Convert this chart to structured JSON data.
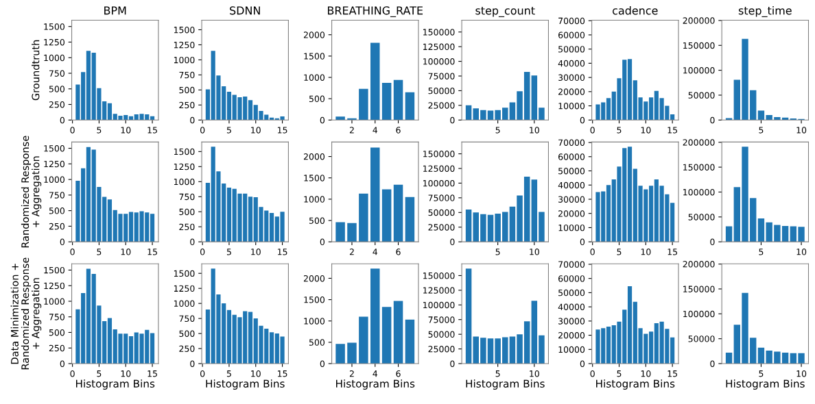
{
  "chart_data": [
    {
      "type": "bar",
      "title": "BPM",
      "ylabel": "Groundtruth",
      "x": [
        1,
        2,
        3,
        4,
        5,
        6,
        7,
        8,
        9,
        10,
        11,
        12,
        13,
        14,
        15
      ],
      "values": [
        570,
        770,
        1110,
        1080,
        510,
        300,
        270,
        100,
        70,
        80,
        60,
        90,
        100,
        90,
        60
      ],
      "color": "#1f77b4",
      "xlim": [
        -0.14,
        16.14
      ],
      "ylim": [
        0,
        1601
      ],
      "xticks": [
        0,
        5,
        10,
        15
      ],
      "yticks": [
        0,
        250,
        500,
        750,
        1000,
        1250,
        1500
      ]
    },
    {
      "type": "bar",
      "title": "SDNN",
      "x": [
        1,
        2,
        3,
        4,
        5,
        6,
        7,
        8,
        9,
        10,
        11,
        12,
        13,
        14,
        15
      ],
      "values": [
        510,
        1150,
        740,
        560,
        470,
        420,
        380,
        390,
        330,
        250,
        150,
        90,
        40,
        30,
        60
      ],
      "color": "#1f77b4",
      "xlim": [
        -0.14,
        16.14
      ],
      "ylim": [
        0,
        1659
      ],
      "xticks": [
        0,
        5,
        10,
        15
      ],
      "yticks": [
        0,
        250,
        500,
        750,
        1000,
        1250,
        1500
      ]
    },
    {
      "type": "bar",
      "title": "BREATHING_RATE",
      "x": [
        1,
        2,
        3,
        4,
        5,
        6,
        7
      ],
      "values": [
        80,
        40,
        730,
        1810,
        870,
        940,
        650
      ],
      "color": "#1f77b4",
      "xlim": [
        0.26,
        7.74
      ],
      "ylim": [
        0,
        2341
      ],
      "xticks": [
        2,
        4,
        6
      ],
      "yticks": [
        0,
        500,
        1000,
        1500,
        2000
      ]
    },
    {
      "type": "bar",
      "title": "step_count",
      "x": [
        1,
        2,
        3,
        4,
        5,
        6,
        7,
        8,
        9,
        10,
        11
      ],
      "values": [
        25000,
        20000,
        17000,
        16000,
        17000,
        21000,
        30000,
        49000,
        82000,
        76000,
        21000
      ],
      "color": "#1f77b4",
      "xlim": [
        0.06,
        11.94
      ],
      "ylim": [
        0,
        170100
      ],
      "xticks": [
        5,
        10
      ],
      "yticks": [
        0,
        25000,
        50000,
        75000,
        100000,
        125000,
        150000
      ]
    },
    {
      "type": "bar",
      "title": "cadence",
      "x": [
        1,
        2,
        3,
        4,
        5,
        6,
        7,
        8,
        9,
        10,
        11,
        12,
        13,
        14,
        15
      ],
      "values": [
        11000,
        12500,
        15500,
        20000,
        29500,
        42500,
        43000,
        28000,
        16000,
        13000,
        16000,
        20500,
        15500,
        10000,
        4000
      ],
      "color": "#1f77b4",
      "xlim": [
        -0.14,
        16.14
      ],
      "ylim": [
        0,
        70350
      ],
      "xticks": [
        0,
        5,
        10,
        15
      ],
      "yticks": [
        0,
        10000,
        20000,
        30000,
        40000,
        50000,
        60000,
        70000
      ]
    },
    {
      "type": "bar",
      "title": "step_time",
      "x": [
        1,
        2,
        3,
        4,
        5,
        6,
        7,
        8,
        9,
        10
      ],
      "values": [
        4000,
        81000,
        163000,
        60000,
        19000,
        10000,
        6000,
        5000,
        3000,
        2000
      ],
      "color": "#1f77b4",
      "xlim": [
        0.11,
        10.89
      ],
      "ylim": [
        0,
        200550
      ],
      "xticks": [
        5,
        10
      ],
      "yticks": [
        0,
        50000,
        100000,
        150000,
        200000
      ]
    },
    {
      "type": "bar",
      "ylabel": "Randomized Response\n+ Aggregation",
      "x": [
        1,
        2,
        3,
        4,
        5,
        6,
        7,
        8,
        9,
        10,
        11,
        12,
        13,
        14,
        15
      ],
      "values": [
        980,
        1180,
        1520,
        1480,
        880,
        720,
        680,
        510,
        450,
        450,
        480,
        470,
        490,
        470,
        450
      ],
      "color": "#1f77b4",
      "xlim": [
        -0.14,
        16.14
      ],
      "ylim": [
        0,
        1601
      ],
      "xticks": [
        0,
        5,
        10,
        15
      ],
      "yticks": [
        0,
        250,
        500,
        750,
        1000,
        1250,
        1500
      ]
    },
    {
      "type": "bar",
      "x": [
        1,
        2,
        3,
        4,
        5,
        6,
        7,
        8,
        9,
        10,
        11,
        12,
        13,
        14,
        15
      ],
      "values": [
        980,
        1580,
        1170,
        970,
        900,
        880,
        800,
        800,
        750,
        740,
        580,
        520,
        480,
        420,
        500
      ],
      "color": "#1f77b4",
      "xlim": [
        -0.14,
        16.14
      ],
      "ylim": [
        0,
        1659
      ],
      "xticks": [
        0,
        5,
        10,
        15
      ],
      "yticks": [
        0,
        250,
        500,
        750,
        1000,
        1250,
        1500
      ]
    },
    {
      "type": "bar",
      "x": [
        1,
        2,
        3,
        4,
        5,
        6,
        7
      ],
      "values": [
        460,
        440,
        1130,
        2210,
        1230,
        1340,
        1050
      ],
      "color": "#1f77b4",
      "xlim": [
        0.26,
        7.74
      ],
      "ylim": [
        0,
        2341
      ],
      "xticks": [
        2,
        4,
        6
      ],
      "yticks": [
        0,
        500,
        1000,
        1500,
        2000
      ]
    },
    {
      "type": "bar",
      "x": [
        1,
        2,
        3,
        4,
        5,
        6,
        7,
        8,
        9,
        10,
        11
      ],
      "values": [
        55000,
        50000,
        47000,
        46000,
        48000,
        51000,
        60000,
        79000,
        111000,
        106000,
        51000
      ],
      "color": "#1f77b4",
      "xlim": [
        0.06,
        11.94
      ],
      "ylim": [
        0,
        170100
      ],
      "xticks": [
        5,
        10
      ],
      "yticks": [
        0,
        25000,
        50000,
        75000,
        100000,
        125000,
        150000
      ]
    },
    {
      "type": "bar",
      "x": [
        1,
        2,
        3,
        4,
        5,
        6,
        7,
        8,
        9,
        10,
        11,
        12,
        13,
        14,
        15
      ],
      "values": [
        35000,
        35500,
        40000,
        44000,
        53000,
        66000,
        67000,
        51500,
        39500,
        37000,
        39500,
        44000,
        39500,
        33500,
        27500
      ],
      "color": "#1f77b4",
      "xlim": [
        -0.14,
        16.14
      ],
      "ylim": [
        0,
        70350
      ],
      "xticks": [
        0,
        5,
        10,
        15
      ],
      "yticks": [
        0,
        10000,
        20000,
        30000,
        40000,
        50000,
        60000,
        70000
      ]
    },
    {
      "type": "bar",
      "x": [
        1,
        2,
        3,
        4,
        5,
        6,
        7,
        8,
        9,
        10
      ],
      "values": [
        31000,
        110000,
        191000,
        88000,
        47000,
        39000,
        34000,
        32000,
        31000,
        30000
      ],
      "color": "#1f77b4",
      "xlim": [
        0.11,
        10.89
      ],
      "ylim": [
        0,
        200550
      ],
      "xticks": [
        5,
        10
      ],
      "yticks": [
        0,
        50000,
        100000,
        150000,
        200000
      ]
    },
    {
      "type": "bar",
      "ylabel": "Data Minimization +\nRandomized Response\n+ Aggregation",
      "xlabel": "Histogram Bins",
      "x": [
        1,
        2,
        3,
        4,
        5,
        6,
        7,
        8,
        9,
        10,
        11,
        12,
        13,
        14,
        15
      ],
      "values": [
        870,
        1130,
        1520,
        1440,
        930,
        680,
        730,
        550,
        480,
        480,
        440,
        500,
        480,
        540,
        490
      ],
      "color": "#1f77b4",
      "xlim": [
        -0.14,
        16.14
      ],
      "ylim": [
        0,
        1601
      ],
      "xticks": [
        0,
        5,
        10,
        15
      ],
      "yticks": [
        0,
        250,
        500,
        750,
        1000,
        1250,
        1500
      ]
    },
    {
      "type": "bar",
      "xlabel": "Histogram Bins",
      "x": [
        1,
        2,
        3,
        4,
        5,
        6,
        7,
        8,
        9,
        10,
        11,
        12,
        13,
        14,
        15
      ],
      "values": [
        900,
        1580,
        1150,
        1000,
        890,
        810,
        770,
        870,
        860,
        750,
        630,
        580,
        520,
        500,
        450
      ],
      "color": "#1f77b4",
      "xlim": [
        -0.14,
        16.14
      ],
      "ylim": [
        0,
        1659
      ],
      "xticks": [
        0,
        5,
        10,
        15
      ],
      "yticks": [
        0,
        250,
        500,
        750,
        1000,
        1250,
        1500
      ]
    },
    {
      "type": "bar",
      "xlabel": "Histogram Bins",
      "x": [
        1,
        2,
        3,
        4,
        5,
        6,
        7
      ],
      "values": [
        460,
        490,
        1100,
        2230,
        1330,
        1470,
        1030
      ],
      "color": "#1f77b4",
      "xlim": [
        0.26,
        7.74
      ],
      "ylim": [
        0,
        2341
      ],
      "xticks": [
        2,
        4,
        6
      ],
      "yticks": [
        0,
        500,
        1000,
        1500,
        2000
      ]
    },
    {
      "type": "bar",
      "xlabel": "Histogram Bins",
      "x": [
        1,
        2,
        3,
        4,
        5,
        6,
        7,
        8,
        9,
        10,
        11
      ],
      "values": [
        162000,
        46000,
        44000,
        43000,
        43000,
        45000,
        46000,
        50000,
        72000,
        107000,
        48000
      ],
      "color": "#1f77b4",
      "xlim": [
        0.06,
        11.94
      ],
      "ylim": [
        0,
        170100
      ],
      "xticks": [
        5,
        10
      ],
      "yticks": [
        0,
        25000,
        50000,
        75000,
        100000,
        125000,
        150000
      ]
    },
    {
      "type": "bar",
      "xlabel": "Histogram Bins",
      "x": [
        1,
        2,
        3,
        4,
        5,
        6,
        7,
        8,
        9,
        10,
        11,
        12,
        13,
        14,
        15
      ],
      "values": [
        24000,
        25000,
        26000,
        27000,
        29500,
        38000,
        54500,
        43500,
        25000,
        21000,
        22500,
        28500,
        29500,
        24500,
        18500
      ],
      "color": "#1f77b4",
      "xlim": [
        -0.14,
        16.14
      ],
      "ylim": [
        0,
        70350
      ],
      "xticks": [
        0,
        5,
        10,
        15
      ],
      "yticks": [
        0,
        10000,
        20000,
        30000,
        40000,
        50000,
        60000,
        70000
      ]
    },
    {
      "type": "bar",
      "xlabel": "Histogram Bins",
      "x": [
        1,
        2,
        3,
        4,
        5,
        6,
        7,
        8,
        9,
        10
      ],
      "values": [
        22000,
        78000,
        142000,
        52000,
        32000,
        26000,
        24000,
        22000,
        21000,
        21000
      ],
      "color": "#1f77b4",
      "xlim": [
        0.11,
        10.89
      ],
      "ylim": [
        0,
        200550
      ],
      "xticks": [
        5,
        10
      ],
      "yticks": [
        0,
        50000,
        100000,
        150000,
        200000
      ]
    }
  ]
}
